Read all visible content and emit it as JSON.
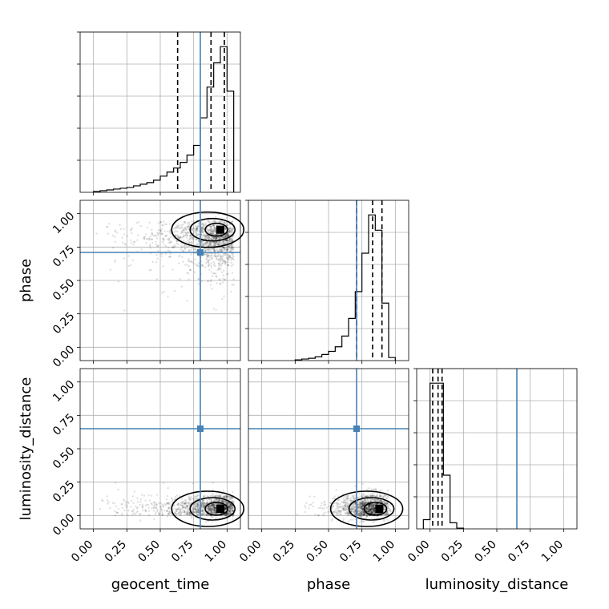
{
  "chart_data": {
    "type": "corner",
    "parameters": [
      "geocent_time",
      "phase",
      "luminosity_distance"
    ],
    "ticks": [
      "0.00",
      "0.25",
      "0.50",
      "0.75",
      "1.00"
    ],
    "range": [
      -0.1,
      1.1
    ],
    "grid": true,
    "truths": {
      "geocent_time": 0.8,
      "phase": 0.71,
      "luminosity_distance": 0.65
    },
    "quantiles": {
      "geocent_time": [
        0.63,
        0.88,
        0.98
      ],
      "phase": [
        0.71,
        0.83,
        0.9
      ],
      "luminosity_distance": [
        0.02,
        0.06,
        0.09
      ]
    },
    "histograms": {
      "geocent_time": {
        "bin_edges": [
          0.0,
          0.05,
          0.1,
          0.15,
          0.2,
          0.25,
          0.3,
          0.35,
          0.4,
          0.45,
          0.5,
          0.55,
          0.6,
          0.65,
          0.7,
          0.75,
          0.8,
          0.85,
          0.9,
          0.95,
          1.0,
          1.05
        ],
        "counts": [
          1,
          2,
          3,
          4,
          5,
          6,
          8,
          10,
          12,
          15,
          20,
          25,
          30,
          37,
          46,
          58,
          92,
          130,
          160,
          180,
          125
        ]
      },
      "phase": {
        "bin_edges": [
          0.25,
          0.3,
          0.35,
          0.4,
          0.45,
          0.5,
          0.55,
          0.6,
          0.65,
          0.7,
          0.75,
          0.8,
          0.85,
          0.9,
          0.95,
          1.0
        ],
        "counts": [
          1,
          2,
          3,
          5,
          8,
          12,
          18,
          32,
          55,
          90,
          140,
          190,
          170,
          75,
          4
        ]
      },
      "luminosity_distance": {
        "bin_edges": [
          -0.05,
          0.0,
          0.05,
          0.1,
          0.15,
          0.2,
          0.25
        ],
        "counts": [
          12,
          190,
          190,
          70,
          8,
          1
        ]
      }
    },
    "density_peaks": {
      "phase_vs_geocent_time": {
        "x": 0.95,
        "y": 0.88
      },
      "luminosity_distance_vs_geocent_time": {
        "x": 0.95,
        "y": 0.05
      },
      "luminosity_distance_vs_phase": {
        "x": 0.88,
        "y": 0.05
      }
    }
  }
}
